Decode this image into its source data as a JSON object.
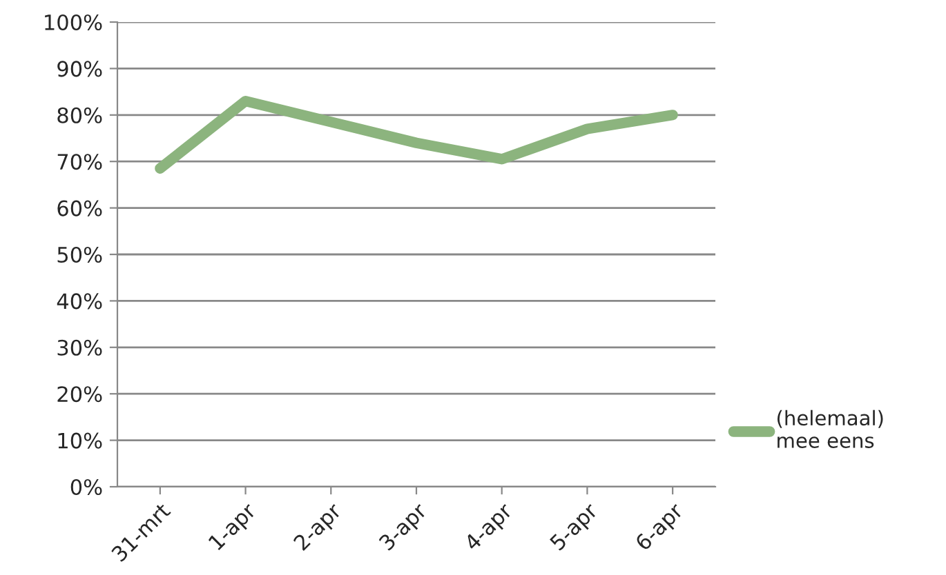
{
  "chart_data": {
    "type": "line",
    "categories": [
      "31-mrt",
      "1-apr",
      "2-apr",
      "3-apr",
      "4-apr",
      "5-apr",
      "6-apr"
    ],
    "series": [
      {
        "name": "(helemaal)\nmee eens",
        "color": "#8cb47e",
        "values": [
          68.5,
          83,
          78.5,
          74,
          70.5,
          77,
          80
        ]
      }
    ],
    "ylim": [
      0,
      100
    ],
    "yticks": [
      {
        "value": 0,
        "label": "0%"
      },
      {
        "value": 10,
        "label": "10%"
      },
      {
        "value": 20,
        "label": "20%"
      },
      {
        "value": 30,
        "label": "30%"
      },
      {
        "value": 40,
        "label": "40%"
      },
      {
        "value": 50,
        "label": "50%"
      },
      {
        "value": 60,
        "label": "60%"
      },
      {
        "value": 70,
        "label": "70%"
      },
      {
        "value": 80,
        "label": "80%"
      },
      {
        "value": 90,
        "label": "90%"
      },
      {
        "value": 100,
        "label": "100%"
      }
    ],
    "grid": "y",
    "legend": "right",
    "marker": "none",
    "line_style": "solid"
  }
}
